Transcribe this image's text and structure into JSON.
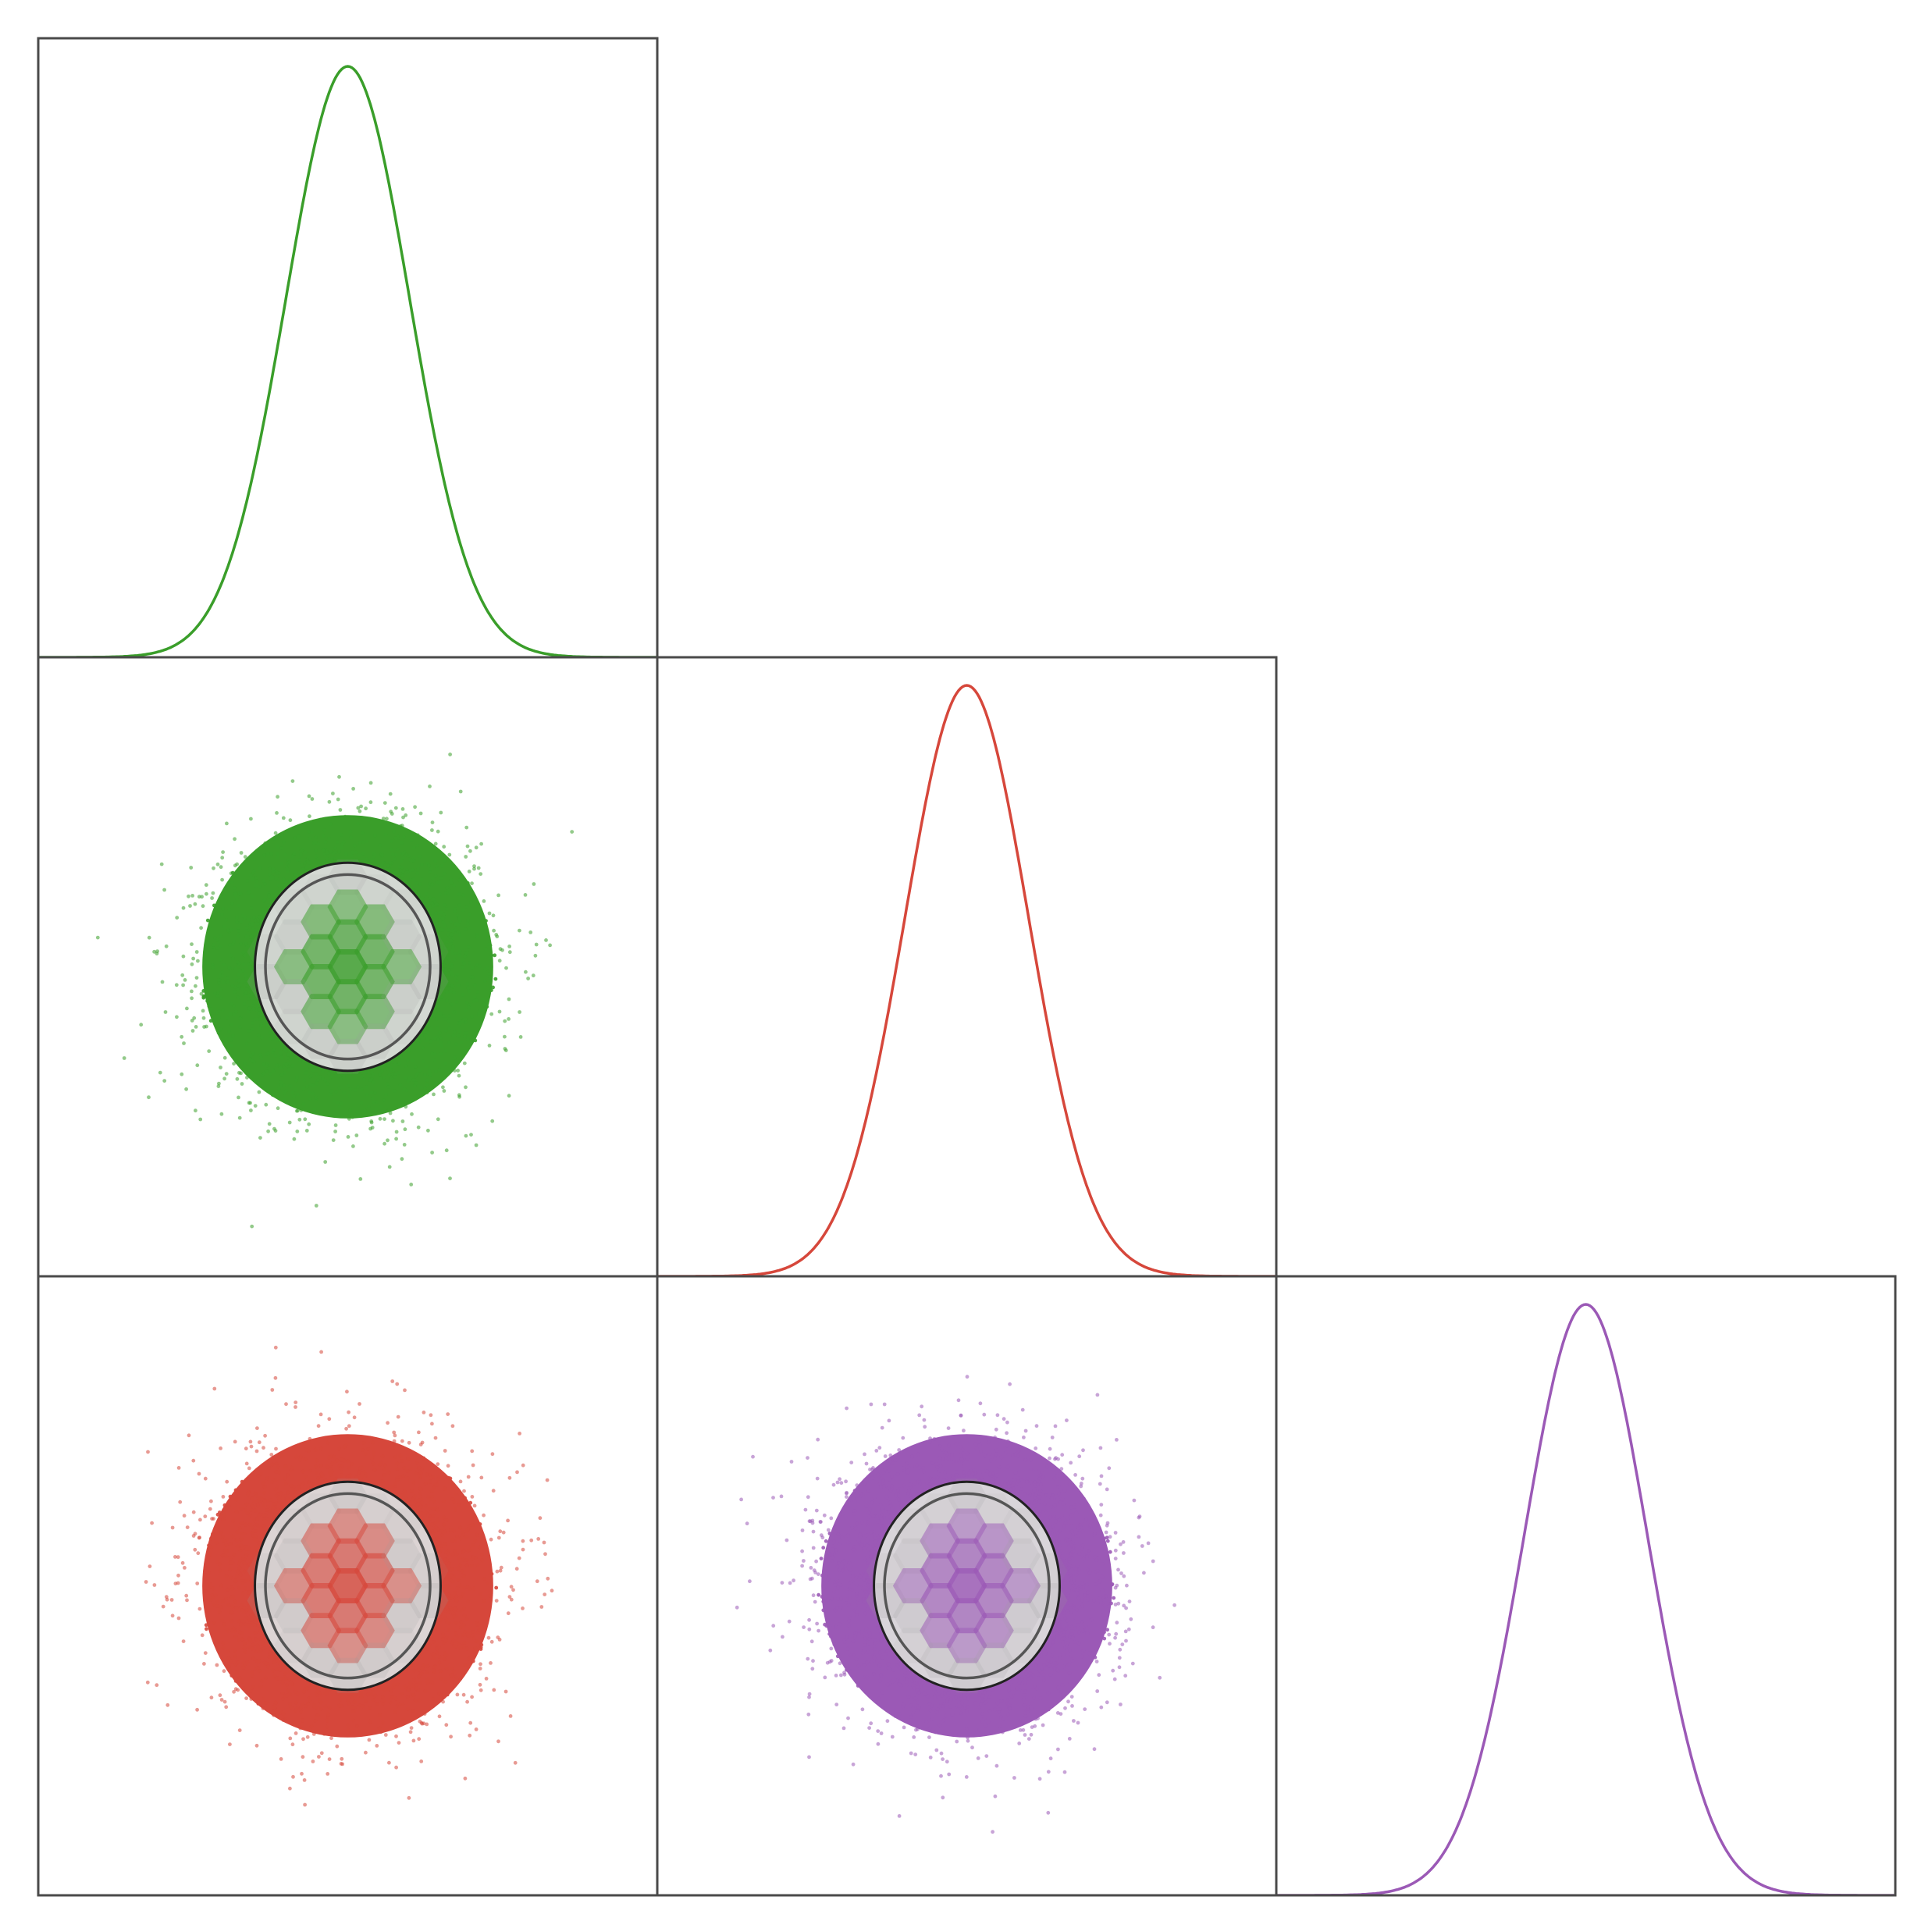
{
  "colors": {
    "series_1": "#3a9e2a",
    "series_2": "#d6473b",
    "series_3": "#9b59b6",
    "frame": "#4a4a4a",
    "contour": "#333333"
  },
  "chart_data": {
    "type": "corner",
    "description_note": "",
    "grid": false,
    "variables": [
      {
        "mean": 0.0,
        "sd": 1.0,
        "color_key": "series_1"
      },
      {
        "mean": 0.0,
        "sd": 1.0,
        "color_key": "series_2"
      },
      {
        "mean": 0.0,
        "sd": 1.0,
        "color_key": "series_3"
      }
    ],
    "panels": [
      {
        "row": 0,
        "col": 0,
        "kind": "density",
        "var": 0,
        "color_key": "series_1"
      },
      {
        "row": 1,
        "col": 0,
        "kind": "scatter",
        "x_var": 0,
        "y_var": 1,
        "color_key": "series_1"
      },
      {
        "row": 1,
        "col": 1,
        "kind": "density",
        "var": 1,
        "color_key": "series_2"
      },
      {
        "row": 2,
        "col": 0,
        "kind": "scatter",
        "x_var": 0,
        "y_var": 2,
        "color_key": "series_2"
      },
      {
        "row": 2,
        "col": 1,
        "kind": "scatter",
        "x_var": 1,
        "y_var": 2,
        "color_key": "series_3"
      },
      {
        "row": 2,
        "col": 2,
        "kind": "density",
        "var": 2,
        "color_key": "series_3"
      }
    ],
    "xlim": [
      -5,
      5
    ],
    "ylim": [
      -5,
      5
    ],
    "contour_levels_sigma": [
      1.0,
      1.5
    ]
  }
}
